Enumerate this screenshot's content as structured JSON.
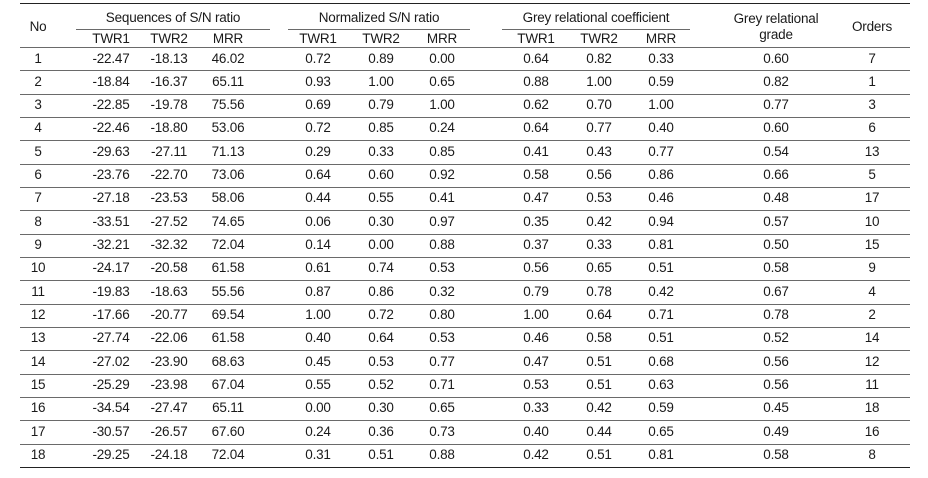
{
  "table": {
    "headers": {
      "no": "No",
      "groups": [
        {
          "key": "sn",
          "label": "Sequences of S/N ratio"
        },
        {
          "key": "norm",
          "label": "Normalized S/N ratio"
        },
        {
          "key": "grc",
          "label": "Grey relational coefficient"
        }
      ],
      "sub": [
        "TWR1",
        "TWR2",
        "MRR"
      ],
      "grade_line1": "Grey relational",
      "grade_line2": "grade",
      "orders": "Orders"
    },
    "rows": [
      [
        "1",
        "-22.47",
        "-18.13",
        "46.02",
        "0.72",
        "0.89",
        "0.00",
        "0.64",
        "0.82",
        "0.33",
        "0.60",
        "7"
      ],
      [
        "2",
        "-18.84",
        "-16.37",
        "65.11",
        "0.93",
        "1.00",
        "0.65",
        "0.88",
        "1.00",
        "0.59",
        "0.82",
        "1"
      ],
      [
        "3",
        "-22.85",
        "-19.78",
        "75.56",
        "0.69",
        "0.79",
        "1.00",
        "0.62",
        "0.70",
        "1.00",
        "0.77",
        "3"
      ],
      [
        "4",
        "-22.46",
        "-18.80",
        "53.06",
        "0.72",
        "0.85",
        "0.24",
        "0.64",
        "0.77",
        "0.40",
        "0.60",
        "6"
      ],
      [
        "5",
        "-29.63",
        "-27.11",
        "71.13",
        "0.29",
        "0.33",
        "0.85",
        "0.41",
        "0.43",
        "0.77",
        "0.54",
        "13"
      ],
      [
        "6",
        "-23.76",
        "-22.70",
        "73.06",
        "0.64",
        "0.60",
        "0.92",
        "0.58",
        "0.56",
        "0.86",
        "0.66",
        "5"
      ],
      [
        "7",
        "-27.18",
        "-23.53",
        "58.06",
        "0.44",
        "0.55",
        "0.41",
        "0.47",
        "0.53",
        "0.46",
        "0.48",
        "17"
      ],
      [
        "8",
        "-33.51",
        "-27.52",
        "74.65",
        "0.06",
        "0.30",
        "0.97",
        "0.35",
        "0.42",
        "0.94",
        "0.57",
        "10"
      ],
      [
        "9",
        "-32.21",
        "-32.32",
        "72.04",
        "0.14",
        "0.00",
        "0.88",
        "0.37",
        "0.33",
        "0.81",
        "0.50",
        "15"
      ],
      [
        "10",
        "-24.17",
        "-20.58",
        "61.58",
        "0.61",
        "0.74",
        "0.53",
        "0.56",
        "0.65",
        "0.51",
        "0.58",
        "9"
      ],
      [
        "11",
        "-19.83",
        "-18.63",
        "55.56",
        "0.87",
        "0.86",
        "0.32",
        "0.79",
        "0.78",
        "0.42",
        "0.67",
        "4"
      ],
      [
        "12",
        "-17.66",
        "-20.77",
        "69.54",
        "1.00",
        "0.72",
        "0.80",
        "1.00",
        "0.64",
        "0.71",
        "0.78",
        "2"
      ],
      [
        "13",
        "-27.74",
        "-22.06",
        "61.58",
        "0.40",
        "0.64",
        "0.53",
        "0.46",
        "0.58",
        "0.51",
        "0.52",
        "14"
      ],
      [
        "14",
        "-27.02",
        "-23.90",
        "68.63",
        "0.45",
        "0.53",
        "0.77",
        "0.47",
        "0.51",
        "0.68",
        "0.56",
        "12"
      ],
      [
        "15",
        "-25.29",
        "-23.98",
        "67.04",
        "0.55",
        "0.52",
        "0.71",
        "0.53",
        "0.51",
        "0.63",
        "0.56",
        "11"
      ],
      [
        "16",
        "-34.54",
        "-27.47",
        "65.11",
        "0.00",
        "0.30",
        "0.65",
        "0.33",
        "0.42",
        "0.59",
        "0.45",
        "18"
      ],
      [
        "17",
        "-30.57",
        "-26.57",
        "67.60",
        "0.24",
        "0.36",
        "0.73",
        "0.40",
        "0.44",
        "0.65",
        "0.49",
        "16"
      ],
      [
        "18",
        "-29.25",
        "-24.18",
        "72.04",
        "0.31",
        "0.51",
        "0.88",
        "0.42",
        "0.51",
        "0.81",
        "0.58",
        "8"
      ]
    ]
  }
}
